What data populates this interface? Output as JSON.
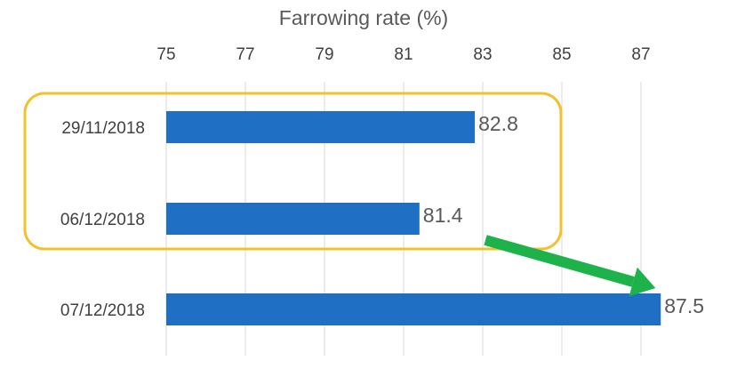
{
  "chart_data": {
    "type": "bar",
    "orientation": "horizontal",
    "title": "Farrowing rate (%)",
    "axis_position": "top",
    "xlim": [
      75,
      87.5
    ],
    "ticks": [
      75,
      77,
      79,
      81,
      83,
      85,
      87
    ],
    "grid": true,
    "categories": [
      "29/11/2018",
      "06/12/2018",
      "07/12/2018"
    ],
    "values": [
      82.8,
      81.4,
      87.5
    ],
    "bar_color": "#1f6fc5",
    "highlight": {
      "type": "rounded-box",
      "categories": [
        "29/11/2018",
        "06/12/2018"
      ],
      "color": "#f2c12e"
    },
    "arrow": {
      "color": "#1db34a",
      "from": {
        "x": 83,
        "category": "06/12/2018"
      },
      "to": {
        "x": 87.5,
        "category": "07/12/2018"
      }
    }
  }
}
